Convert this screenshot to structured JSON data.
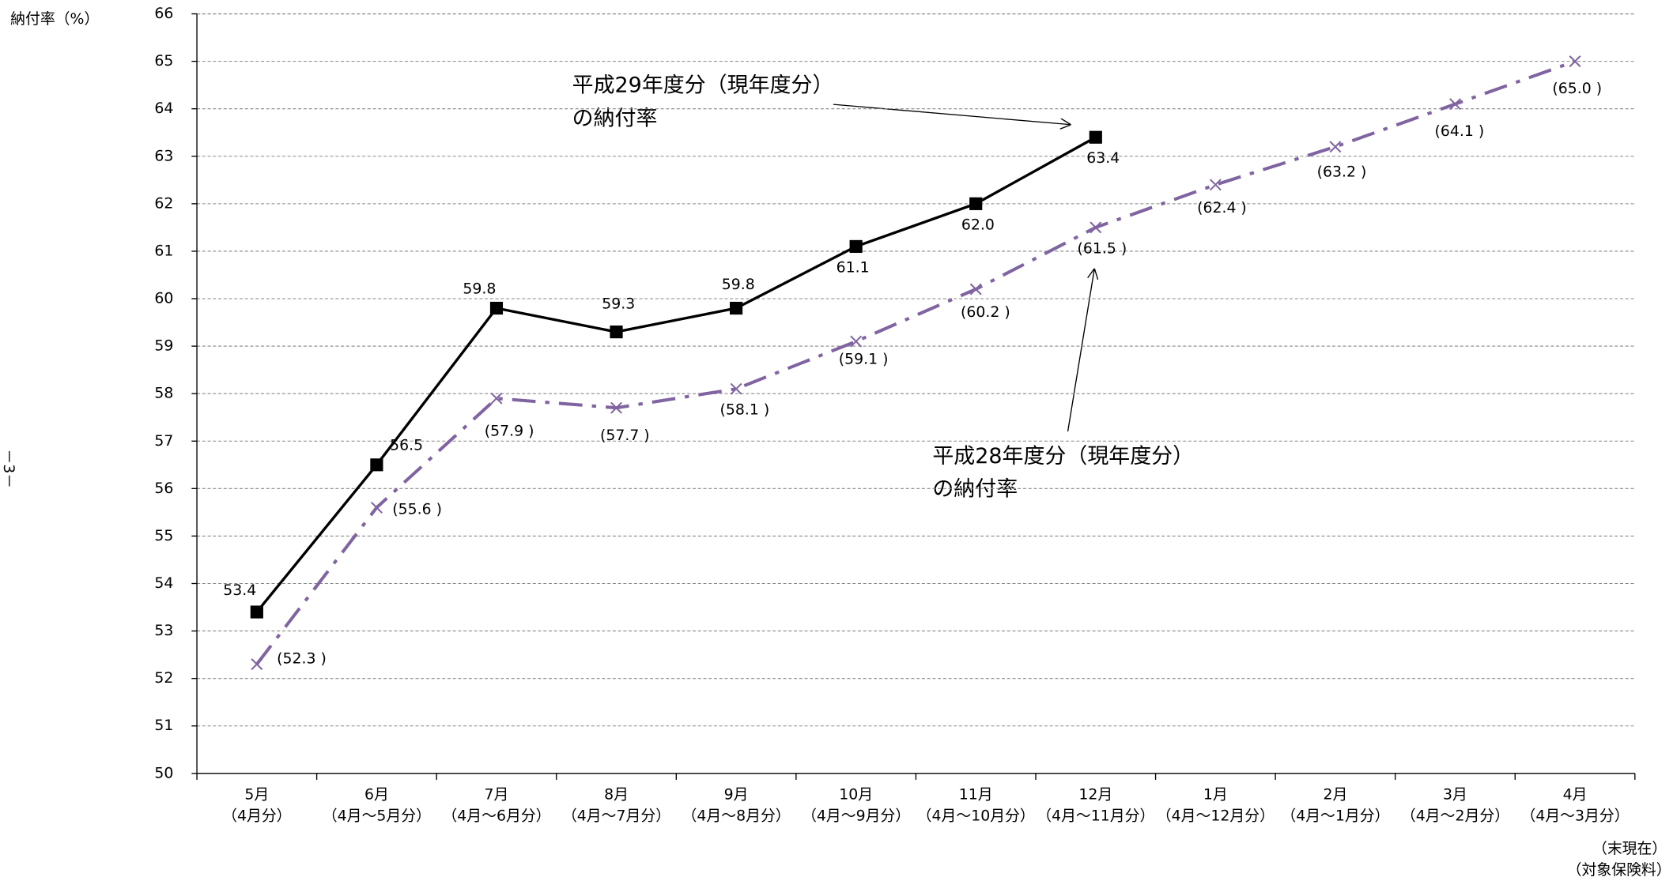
{
  "chart_data": {
    "type": "line",
    "y_axis_label": "納付率（%）",
    "page_number": "－3－",
    "categories": [
      "5月",
      "6月",
      "7月",
      "8月",
      "9月",
      "10月",
      "11月",
      "12月",
      "1月",
      "2月",
      "3月",
      "4月"
    ],
    "category_sublabels": [
      "（4月分）",
      "（4月～5月分）",
      "（4月～6月分）",
      "（4月～7月分）",
      "（4月～8月分）",
      "（4月～9月分）",
      "（4月～10月分）",
      "（4月～11月分）",
      "（4月～12月分）",
      "（4月～1月分）",
      "（4月～2月分）",
      "（4月～3月分）"
    ],
    "footnotes": [
      "（末現在）",
      "（対象保険料）"
    ],
    "series": [
      {
        "color": "#000000",
        "marker": "square",
        "values": [
          53.4,
          56.5,
          59.8,
          59.3,
          59.8,
          61.1,
          62.0,
          63.4,
          null,
          null,
          null,
          null
        ],
        "value_labels": [
          "53.4",
          "56.5",
          "59.8",
          "59.3",
          "59.8",
          "61.1",
          "62.0",
          "63.4",
          null,
          null,
          null,
          null
        ]
      },
      {
        "color": "#8064a2",
        "marker": "x",
        "dash": true,
        "values": [
          52.3,
          55.6,
          57.9,
          57.7,
          58.1,
          59.1,
          60.2,
          61.5,
          62.4,
          63.2,
          64.1,
          65.0
        ],
        "value_labels": [
          "(52.3 )",
          "(55.6 )",
          "(57.9 )",
          "(57.7 )",
          "(58.1 )",
          "(59.1 )",
          "(60.2 )",
          "(61.5 )",
          "(62.4 )",
          "(63.2 )",
          "(64.1 )",
          "(65.0 )"
        ]
      }
    ],
    "annotations": [
      {
        "lines": [
          "平成29年度分（現年度分）",
          "の納付率"
        ]
      },
      {
        "lines": [
          "平成28年度分（現年度分）",
          "の納付率"
        ]
      }
    ],
    "ylim": [
      50,
      66
    ],
    "yticks": [
      50,
      51,
      52,
      53,
      54,
      55,
      56,
      57,
      58,
      59,
      60,
      61,
      62,
      63,
      64,
      65,
      66
    ],
    "grid": true
  }
}
